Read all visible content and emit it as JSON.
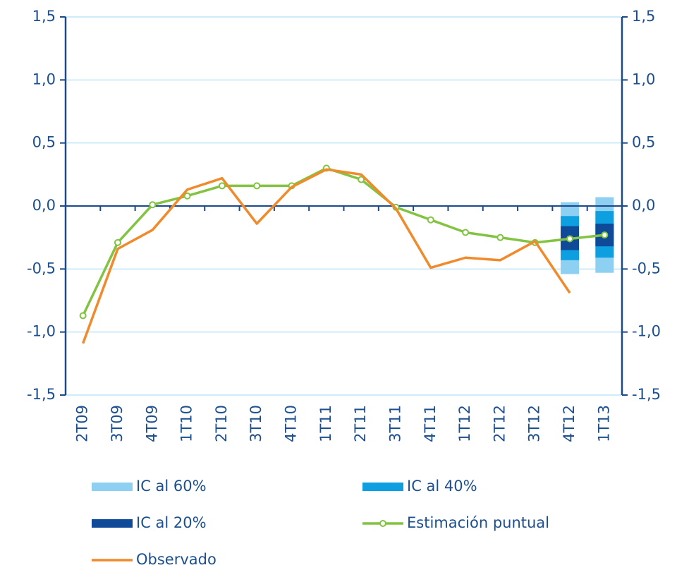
{
  "chart_data": {
    "type": "line",
    "categories": [
      "2T09",
      "3T09",
      "4T09",
      "1T10",
      "2T10",
      "3T10",
      "4T10",
      "1T11",
      "2T11",
      "3T11",
      "4T11",
      "1T12",
      "2T12",
      "3T12",
      "4T12",
      "1T13"
    ],
    "ylim": [
      -1.5,
      1.5
    ],
    "yticks": [
      {
        "value": -1.5,
        "label": "-1,5"
      },
      {
        "value": -1.0,
        "label": "-1,0"
      },
      {
        "value": -0.5,
        "label": "-0,5"
      },
      {
        "value": 0,
        "label": "0,0"
      },
      {
        "value": 0.5,
        "label": "0,5"
      },
      {
        "value": 1.0,
        "label": "1,0"
      },
      {
        "value": 1.5,
        "label": "1,5"
      }
    ],
    "y2lim": [
      -1.5,
      1.5
    ],
    "y2ticks": [
      {
        "value": -1.5,
        "label": "-1,5"
      },
      {
        "value": -1.0,
        "label": "-1,0"
      },
      {
        "value": -0.5,
        "label": "-0,5"
      },
      {
        "value": 0,
        "label": "0,0"
      },
      {
        "value": 0.5,
        "label": "0,5"
      },
      {
        "value": 1.0,
        "label": "1,0"
      },
      {
        "value": 1.5,
        "label": "1,5"
      }
    ],
    "grid": true,
    "bands": [
      {
        "name": "IC al 60%",
        "color": "#8ed0f1",
        "low": [
          null,
          null,
          null,
          null,
          null,
          null,
          null,
          null,
          null,
          null,
          null,
          null,
          null,
          null,
          -0.54,
          -0.53
        ],
        "high": [
          null,
          null,
          null,
          null,
          null,
          null,
          null,
          null,
          null,
          null,
          null,
          null,
          null,
          null,
          0.03,
          0.07
        ]
      },
      {
        "name": "IC al 40%",
        "color": "#0d9fe0",
        "low": [
          null,
          null,
          null,
          null,
          null,
          null,
          null,
          null,
          null,
          null,
          null,
          null,
          null,
          null,
          -0.43,
          -0.41
        ],
        "high": [
          null,
          null,
          null,
          null,
          null,
          null,
          null,
          null,
          null,
          null,
          null,
          null,
          null,
          null,
          -0.08,
          -0.04
        ]
      },
      {
        "name": "IC al 20%",
        "color": "#0f4a98",
        "low": [
          null,
          null,
          null,
          null,
          null,
          null,
          null,
          null,
          null,
          null,
          null,
          null,
          null,
          null,
          -0.35,
          -0.32
        ],
        "high": [
          null,
          null,
          null,
          null,
          null,
          null,
          null,
          null,
          null,
          null,
          null,
          null,
          null,
          null,
          -0.16,
          -0.14
        ]
      }
    ],
    "series": [
      {
        "name": "Estimación puntual",
        "color": "#82c341",
        "markers": true,
        "values": [
          -0.87,
          -0.29,
          0.01,
          0.08,
          0.16,
          0.16,
          0.16,
          0.3,
          0.21,
          -0.01,
          -0.11,
          -0.21,
          -0.25,
          -0.29,
          -0.26,
          -0.23
        ]
      },
      {
        "name": "Observado",
        "color": "#f08a2a",
        "markers": false,
        "values": [
          -1.09,
          -0.34,
          -0.19,
          0.13,
          0.22,
          -0.14,
          0.15,
          0.29,
          0.25,
          -0.02,
          -0.49,
          -0.41,
          -0.43,
          -0.28,
          -0.69,
          null
        ]
      }
    ]
  }
}
